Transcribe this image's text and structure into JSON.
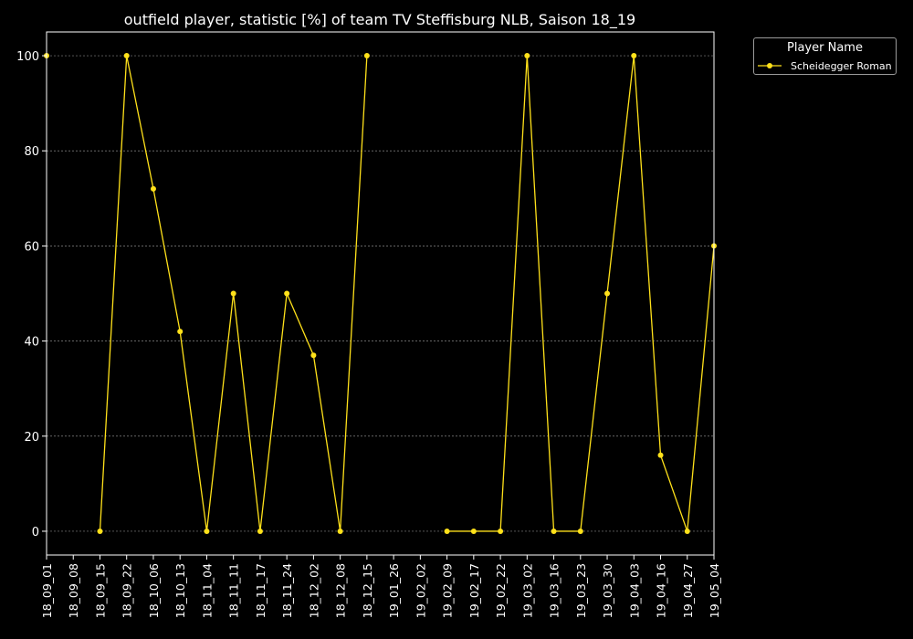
{
  "chart_data": {
    "type": "line",
    "title": "outfield player, statistic [%] of team TV Steffisburg NLB, Saison 18_19",
    "xlabel": "",
    "ylabel": "",
    "categories": [
      "18_09_01",
      "18_09_08",
      "18_09_15",
      "18_09_22",
      "18_10_06",
      "18_10_13",
      "18_11_04",
      "18_11_11",
      "18_11_17",
      "18_11_24",
      "18_12_02",
      "18_12_08",
      "18_12_15",
      "19_01_26",
      "19_02_02",
      "19_02_09",
      "19_02_17",
      "19_02_22",
      "19_03_02",
      "19_03_16",
      "19_03_23",
      "19_03_30",
      "19_04_03",
      "19_04_16",
      "19_04_27",
      "19_05_04"
    ],
    "series": [
      {
        "name": "Scheidegger Roman",
        "color": "#ffe11a",
        "values": [
          100,
          null,
          0,
          100,
          72,
          42,
          0,
          50,
          0,
          50,
          37,
          0,
          100,
          null,
          null,
          0,
          0,
          0,
          100,
          0,
          0,
          50,
          100,
          16,
          0,
          60
        ]
      }
    ],
    "yticks": [
      0,
      20,
      40,
      60,
      80,
      100
    ],
    "ylim": [
      -5,
      105
    ],
    "grid": true,
    "legend": {
      "title": "Player Name",
      "placement": "outside-top-right"
    },
    "colors": {
      "background": "#000000",
      "axis": "#ffffff",
      "grid": "#888888"
    }
  }
}
